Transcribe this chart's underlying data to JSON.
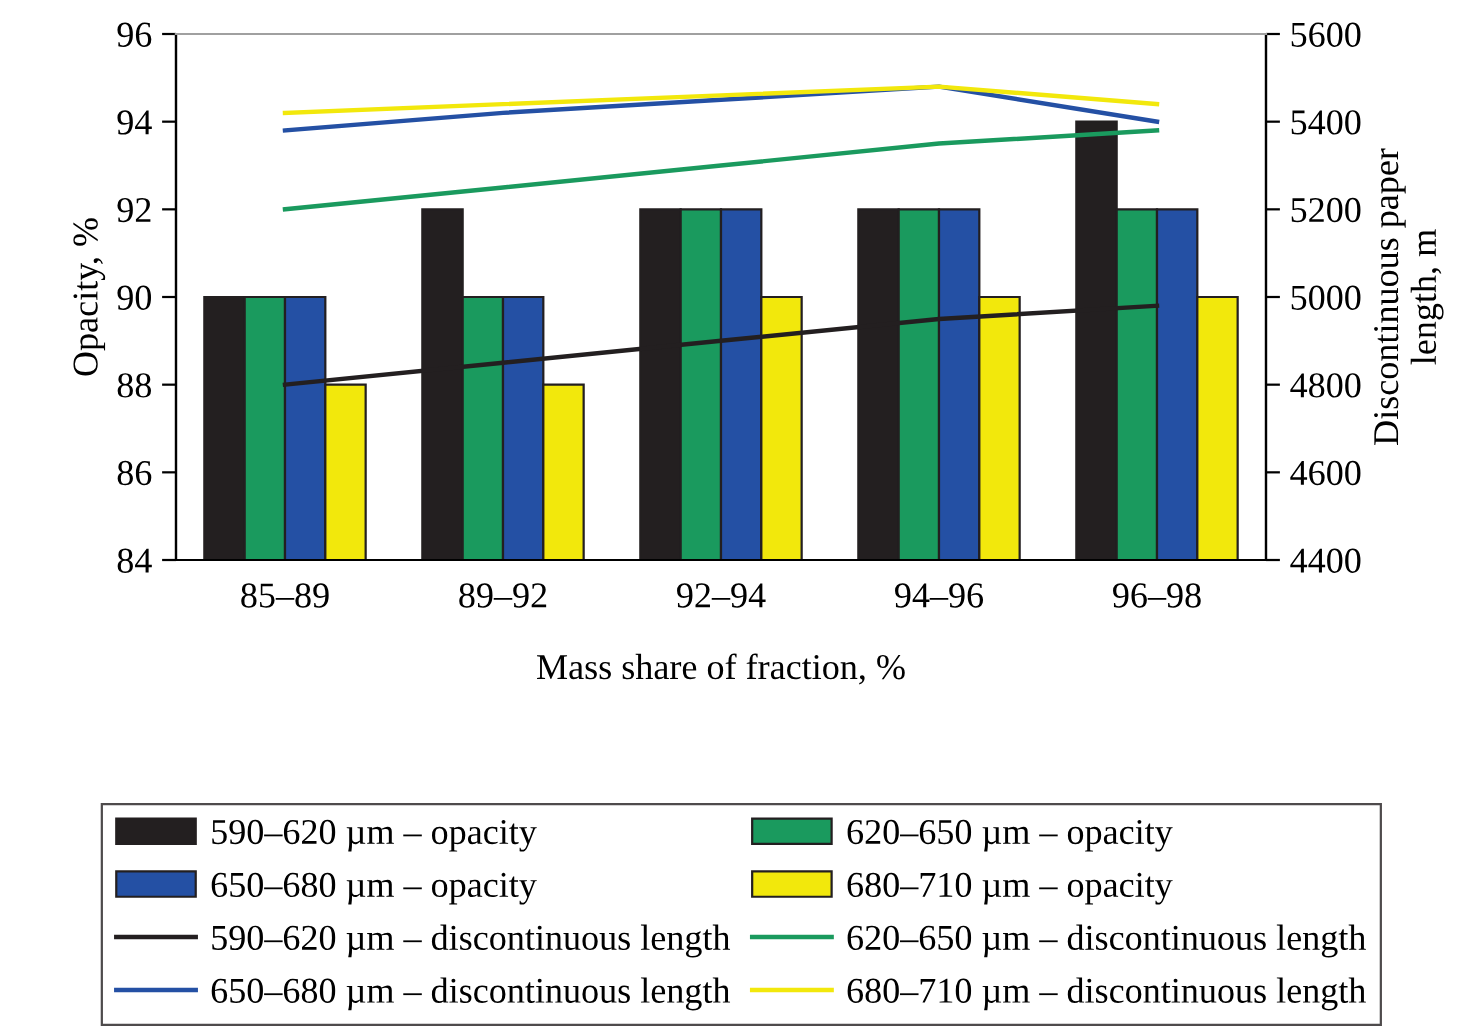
{
  "chart_data": {
    "type": "bar",
    "xlabel": "Mass share of fraction, %",
    "ylabel": "Opacity, %",
    "y2label": "Discontinuous paper\nlength, m",
    "categories": [
      "85–89",
      "89–92",
      "92–94",
      "94–96",
      "96–98"
    ],
    "series": [
      {
        "name": "590–620 µm – opacity",
        "color": "#231f20",
        "values": [
          90,
          92,
          92,
          92,
          94
        ]
      },
      {
        "name": "620–650 µm – opacity",
        "color": "#1a9a5e",
        "values": [
          90,
          90,
          92,
          92,
          92
        ]
      },
      {
        "name": "650–680 µm – opacity",
        "color": "#2450a4",
        "values": [
          90,
          90,
          92,
          92,
          92
        ]
      },
      {
        "name": "680–710 µm – opacity",
        "color": "#f2e80c",
        "values": [
          88,
          88,
          90,
          90,
          90
        ]
      },
      {
        "name": "590–620 µm – discontinuous length",
        "type": "line",
        "axis": "y2",
        "color": "#231f20",
        "values": [
          4800,
          4850,
          4900,
          4950,
          4980
        ]
      },
      {
        "name": "620–650 µm – discontinuous length",
        "type": "line",
        "axis": "y2",
        "color": "#1a9a5e",
        "values": [
          5200,
          5250,
          5300,
          5350,
          5380
        ]
      },
      {
        "name": "650–680 µm – discontinuous length",
        "type": "line",
        "axis": "y2",
        "color": "#2450a4",
        "values": [
          5380,
          5420,
          5450,
          5480,
          5400
        ]
      },
      {
        "name": "680–710 µm – discontinuous length",
        "type": "line",
        "axis": "y2",
        "color": "#f2e80c",
        "values": [
          5420,
          5440,
          5460,
          5480,
          5440
        ]
      }
    ],
    "ylim": [
      84,
      96
    ],
    "yticks": [
      84,
      86,
      88,
      90,
      92,
      94,
      96
    ],
    "y2lim": [
      4400,
      5600
    ],
    "y2ticks": [
      4400,
      4600,
      4800,
      5000,
      5200,
      5400,
      5600
    ],
    "legend": "bottom",
    "grid": false
  }
}
